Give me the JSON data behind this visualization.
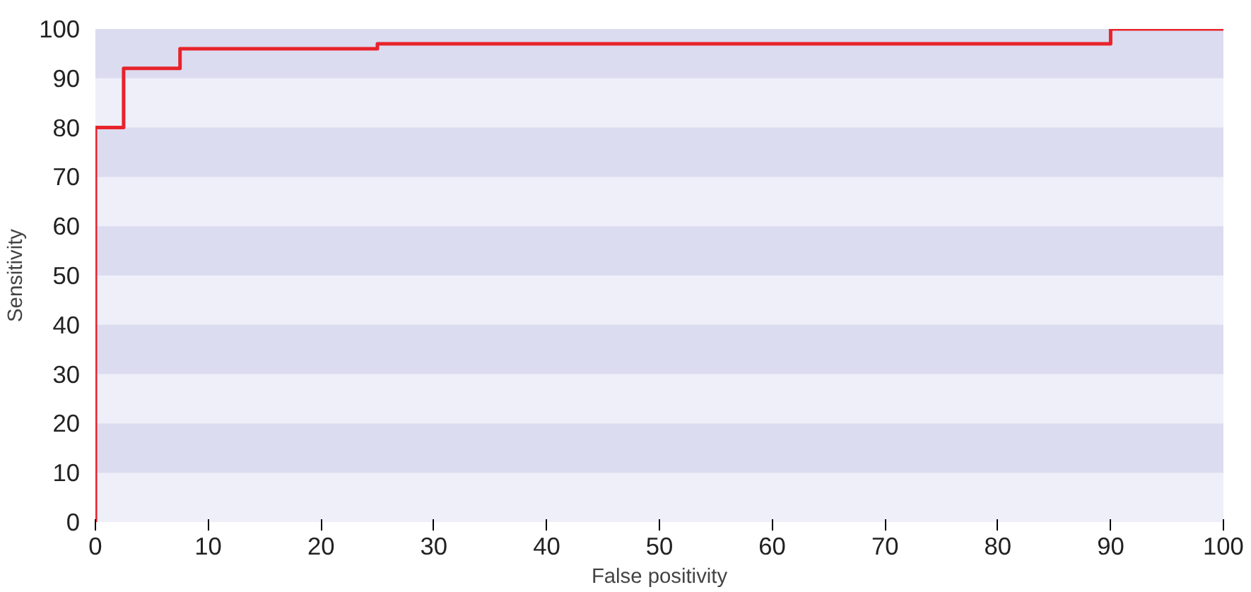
{
  "chart_data": {
    "type": "step",
    "xlabel": "False positivity",
    "ylabel": "Sensitivity",
    "x": [
      0,
      0,
      2.5,
      7.5,
      25,
      90,
      100
    ],
    "series": [
      {
        "color": "#e8232b",
        "values": [
          0,
          80,
          92,
          96,
          97,
          100,
          100
        ]
      }
    ],
    "xlim": [
      0,
      100
    ],
    "ylim": [
      0,
      100
    ],
    "xticks": [
      0,
      10,
      20,
      30,
      40,
      50,
      60,
      70,
      80,
      90,
      100
    ],
    "yticks": [
      0,
      10,
      20,
      30,
      40,
      50,
      60,
      70,
      80,
      90,
      100
    ],
    "grid": false,
    "line_style": "solid",
    "marker": "none",
    "bands": [
      {
        "axis": "y",
        "from": 10,
        "to": 20,
        "color": "#dcdcf0"
      },
      {
        "axis": "y",
        "from": 30,
        "to": 40,
        "color": "#dcdcf0"
      },
      {
        "axis": "y",
        "from": 50,
        "to": 60,
        "color": "#dcdcf0"
      },
      {
        "axis": "y",
        "from": 70,
        "to": 80,
        "color": "#dcdcf0"
      },
      {
        "axis": "y",
        "from": 90,
        "to": 100,
        "color": "#dcdcf0"
      }
    ]
  }
}
